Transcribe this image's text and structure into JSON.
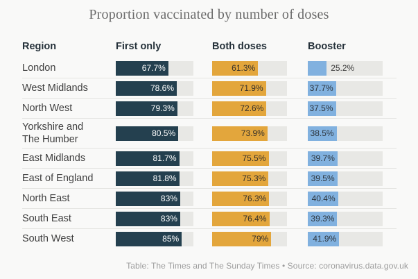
{
  "title": "Proportion vaccinated by number of doses",
  "footer": "Table: The Times and The Sunday Times • Source: coronavirus.data.gov.uk",
  "colors": {
    "page_background": "#f9f9f8",
    "bar_track": "#e8e8e5",
    "first_only": "#24404f",
    "both_doses": "#e3a63c",
    "booster": "#81b1df"
  },
  "chart_data": {
    "type": "bar",
    "orientation": "horizontal",
    "title": "Proportion vaccinated by number of doses",
    "columns": [
      "Region",
      "First only",
      "Both doses",
      "Booster"
    ],
    "categories": [
      "London",
      "West Midlands",
      "North West",
      "Yorkshire and\nThe Humber",
      "East Midlands",
      "East of England",
      "North East",
      "South East",
      "South West"
    ],
    "series": [
      {
        "name": "First only",
        "color": "#24404f",
        "label_color": "#ffffff",
        "values": [
          67.7,
          78.6,
          79.3,
          80.5,
          81.7,
          81.8,
          83,
          83,
          85
        ]
      },
      {
        "name": "Both doses",
        "color": "#e3a63c",
        "label_color": "#35302a",
        "values": [
          61.3,
          71.9,
          72.6,
          73.9,
          75.5,
          75.3,
          76.3,
          76.4,
          79
        ]
      },
      {
        "name": "Booster",
        "color": "#81b1df",
        "label_color": "#2c343c",
        "values": [
          25.2,
          37.7,
          37.5,
          38.5,
          39.7,
          39.5,
          40.4,
          39.3,
          41.9
        ]
      }
    ],
    "value_suffix": "%",
    "xlim": [
      0,
      100
    ],
    "grid": false,
    "legend_position": "column-headers"
  }
}
